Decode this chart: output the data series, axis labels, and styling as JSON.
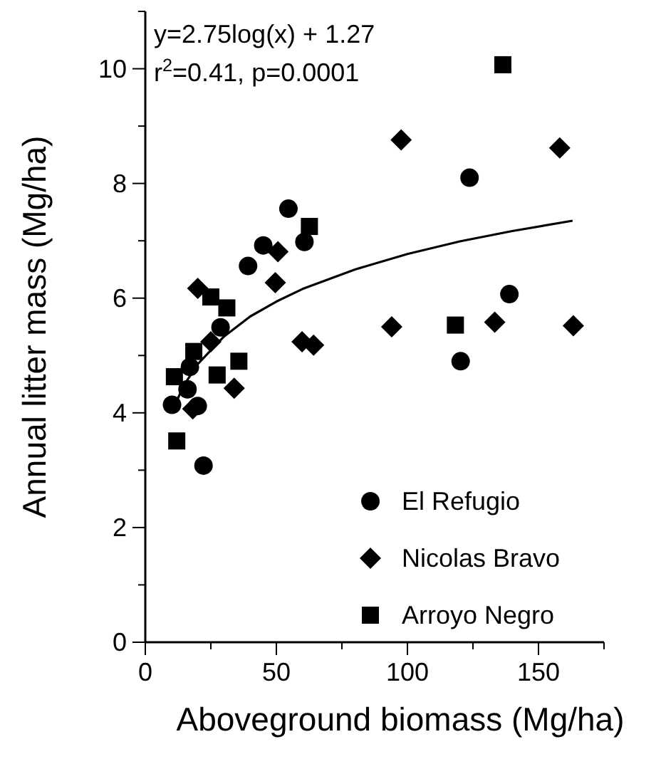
{
  "chart_data": {
    "type": "scatter",
    "xlabel": "Aboveground biomass (Mg/ha)",
    "ylabel": "Annual litter mass (Mg/ha)",
    "xlim": [
      0,
      175
    ],
    "ylim": [
      0,
      11
    ],
    "xticks": [
      0,
      {
        "value": 25,
        "label": null
      },
      50,
      {
        "value": 75,
        "label": null
      },
      100,
      {
        "value": 125,
        "label": null
      },
      150,
      {
        "value": 175,
        "label": null
      }
    ],
    "yticks": [
      0,
      {
        "value": 1,
        "label": null
      },
      2,
      {
        "value": 3,
        "label": null
      },
      4,
      {
        "value": 5,
        "label": null
      },
      6,
      {
        "value": 7,
        "label": null
      },
      8,
      {
        "value": 9,
        "label": null
      },
      10,
      {
        "value": 11,
        "label": null
      }
    ],
    "annotations": [
      "y=2.75log(x) + 1.27",
      "r$^{2}$=0.41, p=0.0001"
    ],
    "legend": "bottom right",
    "grid": false,
    "series": [
      {
        "name": "El Refugio",
        "color": "#000000",
        "marker": "circle",
        "x": [
          54.6,
          45,
          39.2,
          60.7,
          28.7,
          17,
          16.1,
          10.2,
          20,
          22.2,
          123.7,
          138.9,
          120.3
        ],
        "values": [
          7.56,
          6.92,
          6.56,
          6.98,
          5.49,
          4.8,
          4.41,
          4.14,
          4.12,
          3.08,
          8.1,
          6.07,
          4.9
        ]
      },
      {
        "name": "Nicolas Bravo",
        "color": "#000000",
        "marker": "diamond",
        "x": [
          20,
          49.6,
          50.6,
          59.8,
          64.2,
          33.9,
          25,
          18.1,
          97.6,
          158.1,
          94,
          133.3,
          163.3
        ],
        "values": [
          6.17,
          6.27,
          6.81,
          5.24,
          5.18,
          4.43,
          5.24,
          4.07,
          8.76,
          8.62,
          5.5,
          5.58,
          5.52
        ]
      },
      {
        "name": "Arroyo Negro",
        "color": "#000000",
        "marker": "square",
        "x": [
          11.1,
          12,
          18.5,
          25,
          27.4,
          31.1,
          35.7,
          62.6,
          118.3,
          136.4
        ],
        "values": [
          4.63,
          3.51,
          5.07,
          6.02,
          4.66,
          5.83,
          4.9,
          7.25,
          5.53,
          10.07
        ]
      },
      {
        "type": "line",
        "color": "#000000",
        "marker": "none",
        "x": [
          10,
          15,
          20,
          30,
          40,
          50,
          60,
          80,
          100,
          120,
          140,
          163
        ],
        "values": [
          4.02,
          4.5,
          4.85,
          5.33,
          5.68,
          5.94,
          6.16,
          6.5,
          6.77,
          6.99,
          7.17,
          7.35
        ]
      }
    ]
  }
}
